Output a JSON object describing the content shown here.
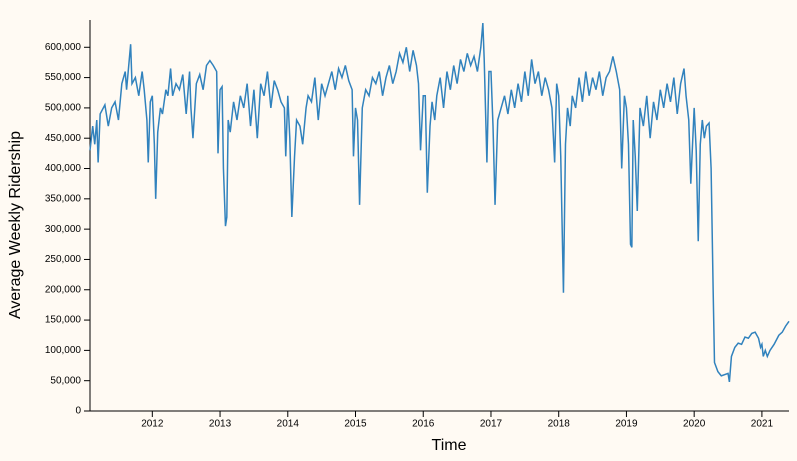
{
  "chart_data": {
    "type": "line",
    "x_label": "Time",
    "y_label": "Average Weekly Ridership",
    "color": "#3182bd",
    "xlim": [
      2011.08,
      2021.4
    ],
    "xticks": [
      2012,
      2013,
      2014,
      2015,
      2016,
      2017,
      2018,
      2019,
      2020,
      2021
    ],
    "ylim": [
      0,
      645000
    ],
    "yticks": [
      0,
      {
        "value": 50000,
        "label": "50,000"
      },
      {
        "value": 100000,
        "label": "100,000"
      },
      {
        "value": 150000,
        "label": "150,000"
      },
      {
        "value": 200000,
        "label": "200,000"
      },
      {
        "value": 250000,
        "label": "250,000"
      },
      {
        "value": 300000,
        "label": "300,000"
      },
      {
        "value": 350000,
        "label": "350,000"
      },
      {
        "value": 400000,
        "label": "400,000"
      },
      {
        "value": 450000,
        "label": "450,000"
      },
      {
        "value": 500000,
        "label": "500,000"
      },
      {
        "value": 550000,
        "label": "550,000"
      },
      {
        "value": 600000,
        "label": "600,000"
      }
    ],
    "x": [
      2011.08,
      2011.12,
      2011.15,
      2011.18,
      2011.2,
      2011.23,
      2011.3,
      2011.35,
      2011.4,
      2011.45,
      2011.5,
      2011.55,
      2011.6,
      2011.62,
      2011.66,
      2011.68,
      2011.7,
      2011.75,
      2011.8,
      2011.85,
      2011.88,
      2011.92,
      2011.94,
      2011.97,
      2012.0,
      2012.03,
      2012.05,
      2012.08,
      2012.12,
      2012.15,
      2012.2,
      2012.23,
      2012.27,
      2012.3,
      2012.35,
      2012.4,
      2012.45,
      2012.5,
      2012.55,
      2012.57,
      2012.6,
      2012.65,
      2012.7,
      2012.75,
      2012.8,
      2012.85,
      2012.9,
      2012.95,
      2012.97,
      2013.0,
      2013.03,
      2013.05,
      2013.08,
      2013.1,
      2013.12,
      2013.15,
      2013.2,
      2013.25,
      2013.3,
      2013.35,
      2013.4,
      2013.45,
      2013.5,
      2013.55,
      2013.6,
      2013.65,
      2013.7,
      2013.75,
      2013.8,
      2013.85,
      2013.9,
      2013.95,
      2013.97,
      2014.0,
      2014.03,
      2014.06,
      2014.1,
      2014.13,
      2014.18,
      2014.22,
      2014.27,
      2014.3,
      2014.35,
      2014.4,
      2014.45,
      2014.5,
      2014.55,
      2014.6,
      2014.65,
      2014.7,
      2014.75,
      2014.8,
      2014.85,
      2014.9,
      2014.95,
      2014.97,
      2015.0,
      2015.03,
      2015.06,
      2015.1,
      2015.15,
      2015.2,
      2015.25,
      2015.3,
      2015.35,
      2015.4,
      2015.45,
      2015.5,
      2015.55,
      2015.6,
      2015.65,
      2015.7,
      2015.75,
      2015.8,
      2015.85,
      2015.9,
      2015.93,
      2015.96,
      2016.0,
      2016.03,
      2016.06,
      2016.1,
      2016.13,
      2016.17,
      2016.2,
      2016.25,
      2016.3,
      2016.35,
      2016.4,
      2016.45,
      2016.5,
      2016.55,
      2016.6,
      2016.65,
      2016.7,
      2016.75,
      2016.8,
      2016.85,
      2016.88,
      2016.9,
      2016.94,
      2016.97,
      2017.0,
      2017.03,
      2017.06,
      2017.1,
      2017.15,
      2017.2,
      2017.25,
      2017.3,
      2017.35,
      2017.4,
      2017.45,
      2017.5,
      2017.55,
      2017.6,
      2017.65,
      2017.7,
      2017.75,
      2017.8,
      2017.85,
      2017.9,
      2017.94,
      2017.97,
      2018.0,
      2018.03,
      2018.07,
      2018.1,
      2018.13,
      2018.17,
      2018.2,
      2018.25,
      2018.3,
      2018.35,
      2018.4,
      2018.45,
      2018.5,
      2018.55,
      2018.6,
      2018.65,
      2018.7,
      2018.75,
      2018.8,
      2018.85,
      2018.9,
      2018.93,
      2018.97,
      2019.0,
      2019.03,
      2019.06,
      2019.08,
      2019.1,
      2019.13,
      2019.16,
      2019.2,
      2019.25,
      2019.3,
      2019.35,
      2019.4,
      2019.45,
      2019.5,
      2019.55,
      2019.6,
      2019.65,
      2019.7,
      2019.75,
      2019.8,
      2019.85,
      2019.88,
      2019.92,
      2019.95,
      2020.0,
      2020.03,
      2020.06,
      2020.09,
      2020.12,
      2020.15,
      2020.18,
      2020.22,
      2020.25,
      2020.28,
      2020.3,
      2020.35,
      2020.4,
      2020.5,
      2020.52,
      2020.55,
      2020.6,
      2020.65,
      2020.7,
      2020.75,
      2020.8,
      2020.85,
      2020.9,
      2020.95,
      2020.98,
      2021.0,
      2021.02,
      2021.05,
      2021.08,
      2021.12,
      2021.18,
      2021.25,
      2021.3,
      2021.35,
      2021.4
    ],
    "values": [
      430000,
      470000,
      440000,
      480000,
      410000,
      490000,
      505000,
      470000,
      500000,
      510000,
      480000,
      540000,
      560000,
      530000,
      580000,
      605000,
      540000,
      550000,
      520000,
      560000,
      530000,
      480000,
      410000,
      510000,
      520000,
      440000,
      350000,
      460000,
      500000,
      490000,
      530000,
      520000,
      565000,
      520000,
      540000,
      530000,
      555000,
      490000,
      560000,
      500000,
      450000,
      540000,
      555000,
      530000,
      570000,
      578000,
      570000,
      560000,
      425000,
      530000,
      535000,
      400000,
      305000,
      320000,
      480000,
      460000,
      510000,
      480000,
      520000,
      500000,
      540000,
      470000,
      530000,
      450000,
      540000,
      520000,
      560000,
      500000,
      545000,
      530000,
      510000,
      500000,
      420000,
      520000,
      450000,
      320000,
      420000,
      480000,
      470000,
      440000,
      500000,
      520000,
      510000,
      550000,
      480000,
      540000,
      520000,
      540000,
      560000,
      530000,
      565000,
      550000,
      570000,
      545000,
      530000,
      420000,
      500000,
      480000,
      340000,
      500000,
      530000,
      520000,
      550000,
      540000,
      560000,
      520000,
      550000,
      570000,
      540000,
      560000,
      590000,
      575000,
      600000,
      560000,
      595000,
      570000,
      540000,
      430000,
      520000,
      520000,
      360000,
      470000,
      510000,
      480000,
      520000,
      550000,
      500000,
      560000,
      530000,
      570000,
      540000,
      580000,
      560000,
      590000,
      570000,
      585000,
      560000,
      600000,
      640000,
      580000,
      410000,
      560000,
      560000,
      470000,
      340000,
      480000,
      500000,
      520000,
      490000,
      530000,
      500000,
      540000,
      510000,
      560000,
      520000,
      580000,
      540000,
      560000,
      520000,
      550000,
      530000,
      500000,
      410000,
      540000,
      520000,
      420000,
      195000,
      440000,
      500000,
      470000,
      520000,
      500000,
      550000,
      510000,
      560000,
      520000,
      550000,
      530000,
      560000,
      520000,
      550000,
      560000,
      585000,
      560000,
      530000,
      400000,
      520000,
      500000,
      440000,
      275000,
      270000,
      480000,
      420000,
      330000,
      500000,
      470000,
      520000,
      450000,
      510000,
      480000,
      530000,
      500000,
      540000,
      510000,
      550000,
      490000,
      540000,
      565000,
      520000,
      480000,
      375000,
      500000,
      430000,
      280000,
      440000,
      480000,
      450000,
      470000,
      475000,
      400000,
      200000,
      80000,
      65000,
      58000,
      62000,
      48000,
      90000,
      105000,
      112000,
      110000,
      122000,
      120000,
      128000,
      130000,
      120000,
      105000,
      110000,
      90000,
      100000,
      90000,
      100000,
      110000,
      125000,
      130000,
      140000,
      148000
    ]
  }
}
